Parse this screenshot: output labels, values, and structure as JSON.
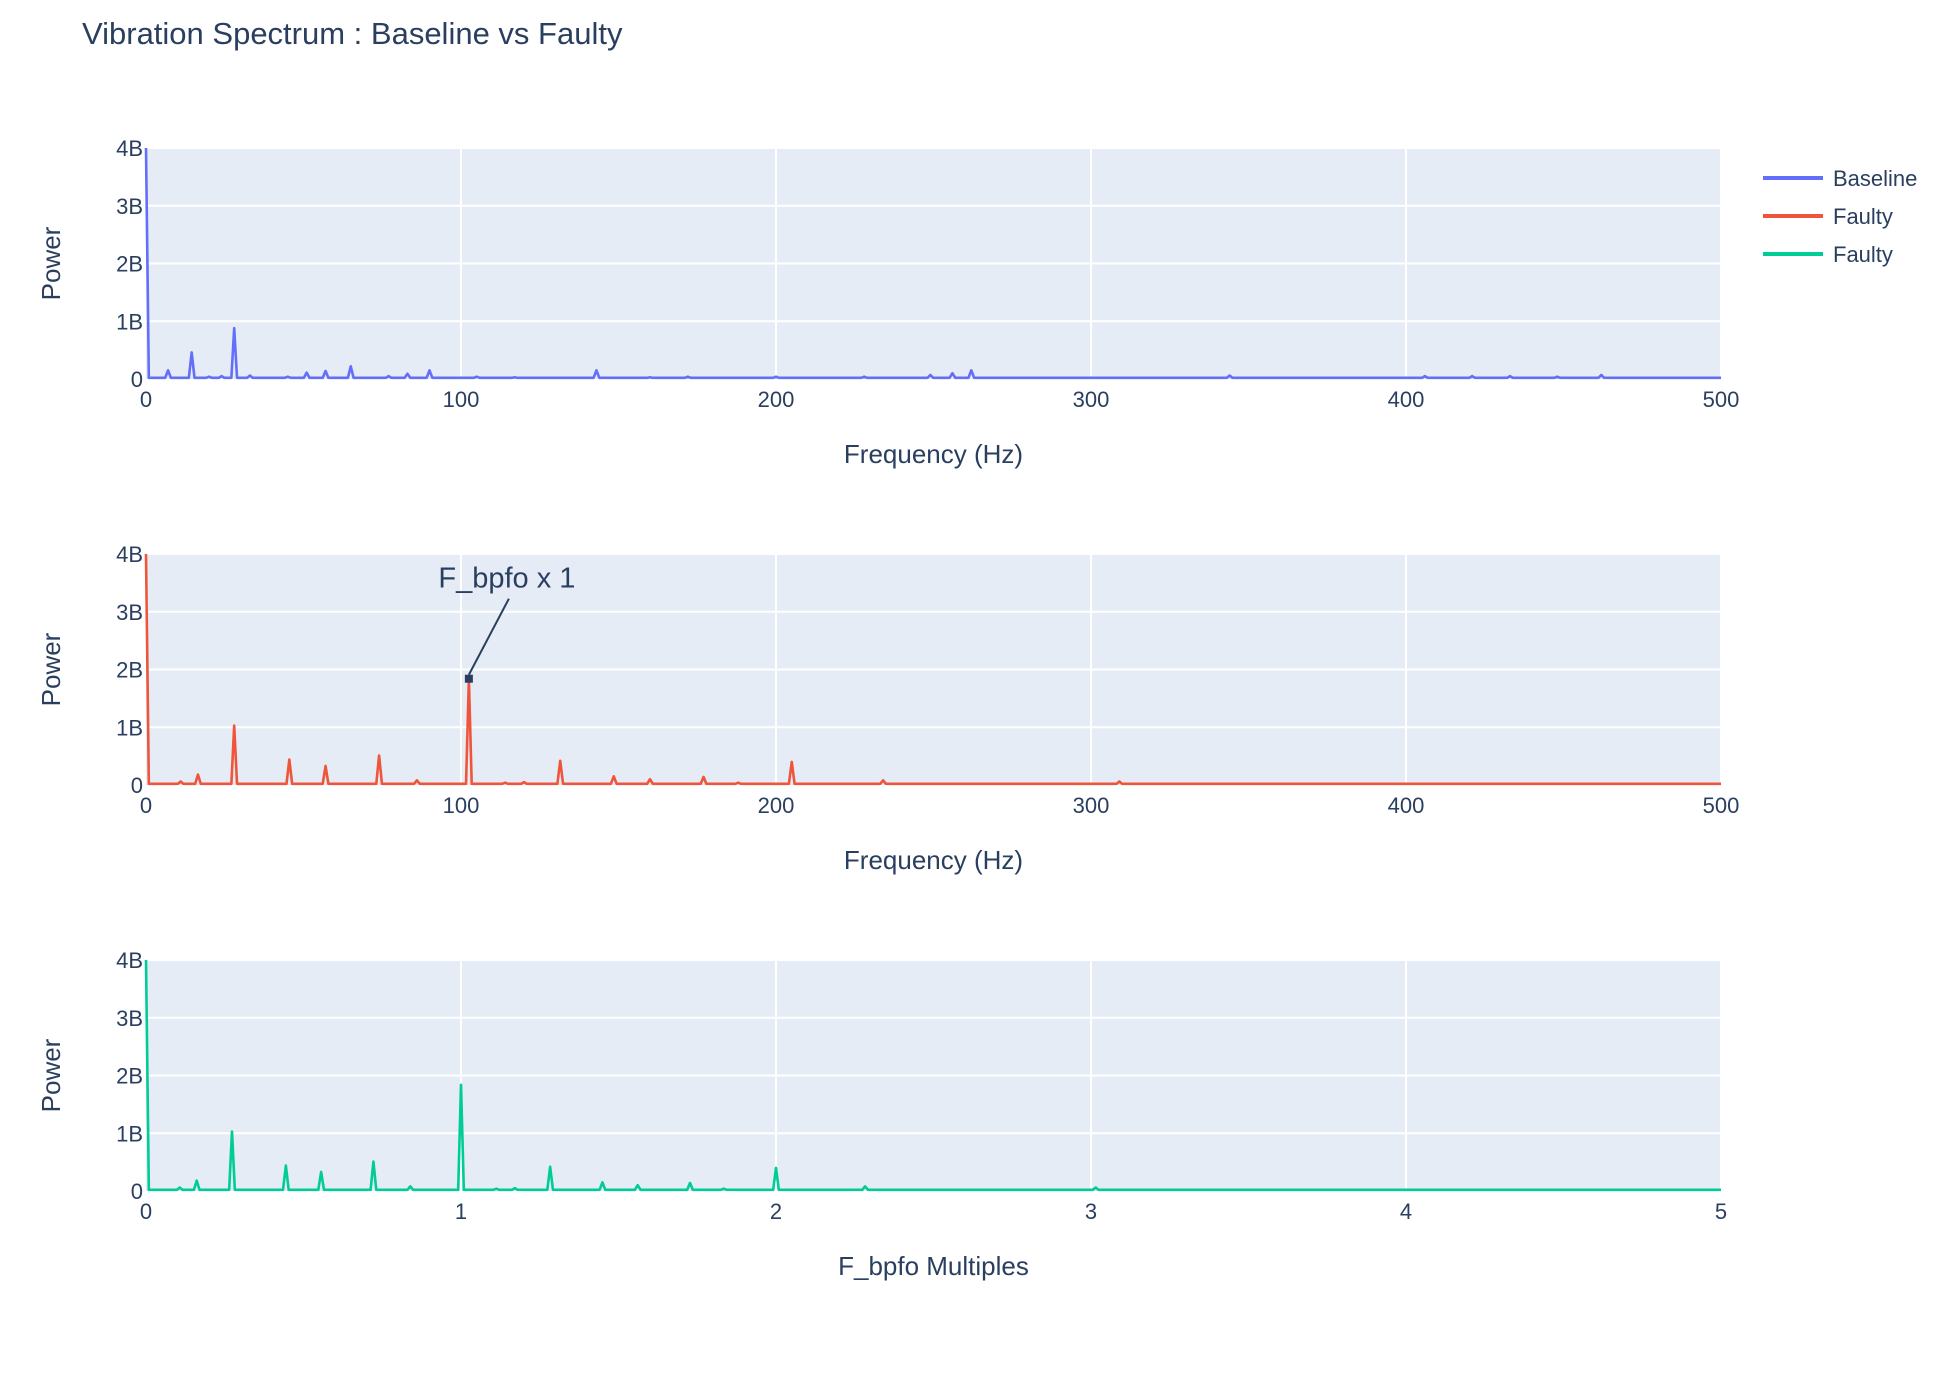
{
  "chart_title": "Vibration Spectrum : Baseline vs Faulty",
  "colors": {
    "plot_bg": "#e5ecf6",
    "grid": "#ffffff",
    "text": "#2a3f5f",
    "baseline": "#636efa",
    "faulty": "#ef553b",
    "faulty_multiples": "#00cc96"
  },
  "legend": [
    {
      "name": "Baseline",
      "color": "#636efa"
    },
    {
      "name": "Faulty",
      "color": "#ef553b"
    },
    {
      "name": "Faulty",
      "color": "#00cc96"
    }
  ],
  "chart_data": [
    {
      "type": "line",
      "series": [
        {
          "name": "Baseline",
          "color": "#636efa"
        }
      ],
      "xlabel": "Frequency (Hz)",
      "ylabel": "Power",
      "xlim": [
        0,
        500
      ],
      "ylim": [
        0,
        4000000000
      ],
      "xticks": [
        0,
        100,
        200,
        300,
        400,
        500
      ],
      "xtick_labels": [
        "0",
        "100",
        "200",
        "300",
        "400",
        "500"
      ],
      "yticks": [
        0,
        1000000000,
        2000000000,
        3000000000,
        4000000000
      ],
      "ytick_labels": [
        "0",
        "1B",
        "2B",
        "3B",
        "4B"
      ],
      "baseline_floor": 20000000,
      "peaks": [
        {
          "x": 0,
          "y": 4000000000
        },
        {
          "x": 7,
          "y": 150000000
        },
        {
          "x": 14.5,
          "y": 460000000
        },
        {
          "x": 20,
          "y": 40000000
        },
        {
          "x": 24,
          "y": 50000000
        },
        {
          "x": 28,
          "y": 880000000
        },
        {
          "x": 33,
          "y": 60000000
        },
        {
          "x": 45,
          "y": 40000000
        },
        {
          "x": 51,
          "y": 110000000
        },
        {
          "x": 57,
          "y": 140000000
        },
        {
          "x": 65,
          "y": 220000000
        },
        {
          "x": 77,
          "y": 50000000
        },
        {
          "x": 83,
          "y": 90000000
        },
        {
          "x": 90,
          "y": 150000000
        },
        {
          "x": 105,
          "y": 40000000
        },
        {
          "x": 117,
          "y": 30000000
        },
        {
          "x": 143,
          "y": 150000000
        },
        {
          "x": 160,
          "y": 30000000
        },
        {
          "x": 172,
          "y": 40000000
        },
        {
          "x": 200,
          "y": 40000000
        },
        {
          "x": 228,
          "y": 40000000
        },
        {
          "x": 249,
          "y": 70000000
        },
        {
          "x": 256,
          "y": 100000000
        },
        {
          "x": 262,
          "y": 150000000
        },
        {
          "x": 344,
          "y": 60000000
        },
        {
          "x": 406,
          "y": 50000000
        },
        {
          "x": 421,
          "y": 50000000
        },
        {
          "x": 433,
          "y": 50000000
        },
        {
          "x": 448,
          "y": 40000000
        },
        {
          "x": 462,
          "y": 70000000
        }
      ]
    },
    {
      "type": "line",
      "series": [
        {
          "name": "Faulty",
          "color": "#ef553b"
        }
      ],
      "xlabel": "Frequency (Hz)",
      "ylabel": "Power",
      "xlim": [
        0,
        500
      ],
      "ylim": [
        0,
        4000000000
      ],
      "xticks": [
        0,
        100,
        200,
        300,
        400,
        500
      ],
      "xtick_labels": [
        "0",
        "100",
        "200",
        "300",
        "400",
        "500"
      ],
      "yticks": [
        0,
        1000000000,
        2000000000,
        3000000000,
        4000000000
      ],
      "ytick_labels": [
        "0",
        "1B",
        "2B",
        "3B",
        "4B"
      ],
      "baseline_floor": 20000000,
      "peaks": [
        {
          "x": 0,
          "y": 4000000000
        },
        {
          "x": 11,
          "y": 60000000
        },
        {
          "x": 16.5,
          "y": 180000000
        },
        {
          "x": 28,
          "y": 1030000000
        },
        {
          "x": 45.5,
          "y": 440000000
        },
        {
          "x": 57,
          "y": 330000000
        },
        {
          "x": 74,
          "y": 510000000
        },
        {
          "x": 86,
          "y": 80000000
        },
        {
          "x": 102.5,
          "y": 1840000000
        },
        {
          "x": 114,
          "y": 40000000
        },
        {
          "x": 120,
          "y": 50000000
        },
        {
          "x": 131.5,
          "y": 420000000
        },
        {
          "x": 148.5,
          "y": 150000000
        },
        {
          "x": 160,
          "y": 100000000
        },
        {
          "x": 177,
          "y": 140000000
        },
        {
          "x": 188,
          "y": 40000000
        },
        {
          "x": 205,
          "y": 400000000
        },
        {
          "x": 234,
          "y": 80000000
        },
        {
          "x": 309,
          "y": 60000000
        }
      ],
      "annotation": {
        "text": "F_bpfo x 1",
        "x": 102.5,
        "y": 1840000000
      }
    },
    {
      "type": "line",
      "series": [
        {
          "name": "Faulty",
          "color": "#00cc96"
        }
      ],
      "xlabel": "F_bpfo Multiples",
      "ylabel": "Power",
      "xlim": [
        0,
        5
      ],
      "ylim": [
        0,
        4000000000
      ],
      "xticks": [
        0,
        1,
        2,
        3,
        4,
        5
      ],
      "xtick_labels": [
        "0",
        "1",
        "2",
        "3",
        "4",
        "5"
      ],
      "yticks": [
        0,
        1000000000,
        2000000000,
        3000000000,
        4000000000
      ],
      "ytick_labels": [
        "0",
        "1B",
        "2B",
        "3B",
        "4B"
      ],
      "baseline_floor": 20000000,
      "peaks": [
        {
          "x": 0,
          "y": 4000000000
        },
        {
          "x": 0.107,
          "y": 60000000
        },
        {
          "x": 0.161,
          "y": 180000000
        },
        {
          "x": 0.273,
          "y": 1030000000
        },
        {
          "x": 0.444,
          "y": 440000000
        },
        {
          "x": 0.556,
          "y": 330000000
        },
        {
          "x": 0.722,
          "y": 510000000
        },
        {
          "x": 0.839,
          "y": 80000000
        },
        {
          "x": 1.0,
          "y": 1840000000
        },
        {
          "x": 1.112,
          "y": 40000000
        },
        {
          "x": 1.171,
          "y": 50000000
        },
        {
          "x": 1.283,
          "y": 420000000
        },
        {
          "x": 1.449,
          "y": 150000000
        },
        {
          "x": 1.561,
          "y": 100000000
        },
        {
          "x": 1.727,
          "y": 140000000
        },
        {
          "x": 1.834,
          "y": 40000000
        },
        {
          "x": 2.0,
          "y": 400000000
        },
        {
          "x": 2.283,
          "y": 80000000
        },
        {
          "x": 3.015,
          "y": 60000000
        }
      ]
    }
  ]
}
